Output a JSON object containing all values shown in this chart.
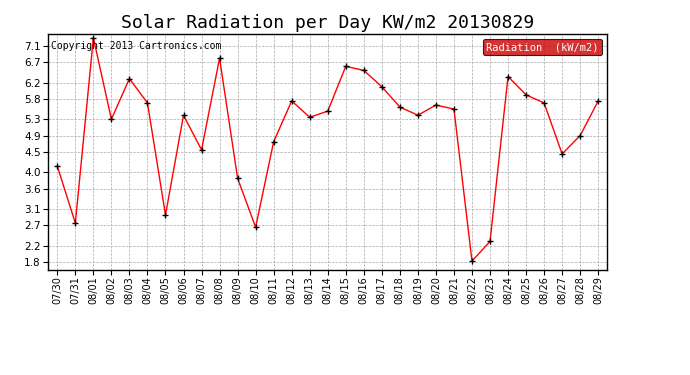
{
  "title": "Solar Radiation per Day KW/m2 20130829",
  "copyright": "Copyright 2013 Cartronics.com",
  "legend_label": "Radiation  (kW/m2)",
  "dates": [
    "07/30",
    "07/31",
    "08/01",
    "08/02",
    "08/03",
    "08/04",
    "08/05",
    "08/06",
    "08/07",
    "08/08",
    "08/09",
    "08/10",
    "08/11",
    "08/12",
    "08/13",
    "08/14",
    "08/15",
    "08/16",
    "08/17",
    "08/18",
    "08/19",
    "08/20",
    "08/21",
    "08/22",
    "08/23",
    "08/24",
    "08/25",
    "08/26",
    "08/27",
    "08/28",
    "08/29"
  ],
  "values": [
    4.15,
    2.75,
    7.3,
    5.3,
    6.3,
    5.7,
    2.95,
    5.4,
    4.55,
    6.8,
    3.85,
    2.65,
    4.75,
    5.75,
    5.35,
    5.5,
    6.6,
    6.5,
    6.1,
    5.6,
    5.4,
    5.65,
    5.55,
    1.82,
    2.3,
    6.35,
    5.9,
    5.7,
    4.45,
    4.9,
    5.75
  ],
  "line_color": "red",
  "marker_color": "black",
  "bg_color": "#ffffff",
  "plot_bg_color": "#ffffff",
  "grid_color": "#aaaaaa",
  "ylim": [
    1.6,
    7.4
  ],
  "yticks": [
    1.8,
    2.2,
    2.7,
    3.1,
    3.6,
    4.0,
    4.5,
    4.9,
    5.3,
    5.8,
    6.2,
    6.7,
    7.1
  ],
  "title_fontsize": 13,
  "copyright_fontsize": 7,
  "tick_fontsize": 7,
  "ytick_fontsize": 7.5,
  "legend_bg": "#cc0000",
  "legend_text_color": "#ffffff",
  "border_color": "#000000"
}
